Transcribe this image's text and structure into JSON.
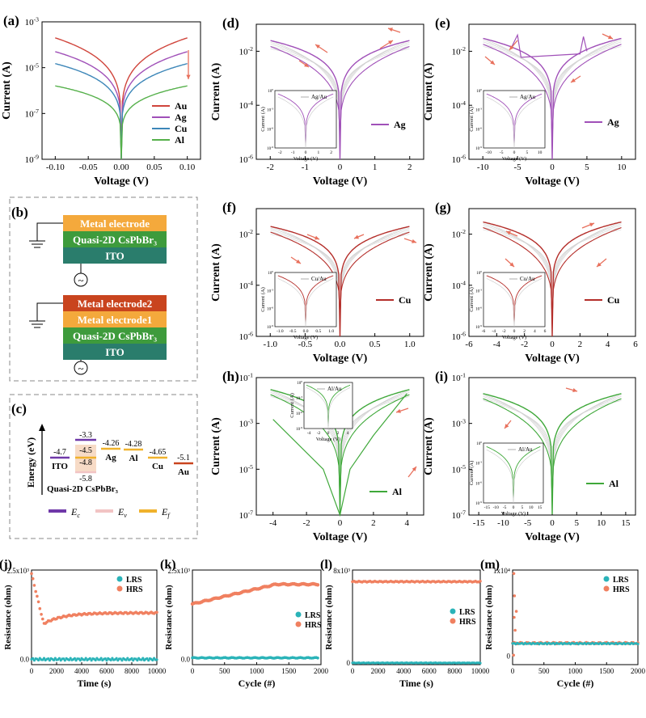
{
  "colors": {
    "au": "#d0453c",
    "ag": "#a050b8",
    "cu": "#3c86b8",
    "al": "#55b04a",
    "cu_dark": "#b42e2a",
    "al_green": "#3fa83a",
    "lrs": "#2ab3b8",
    "hrs": "#f08060",
    "arrow": "#e8705c",
    "ec": "#6f38a8",
    "ev": "#f2c4c4",
    "ef": "#f0b22c",
    "metal": "#f4a93c",
    "metal2": "#c9441e",
    "perov": "#3e9b3c",
    "ito": "#2a7d6c"
  },
  "chart_data": [
    {
      "id": "a",
      "panel_label": "(a)",
      "type": "line",
      "scale": "log",
      "xlabel": "Voltage (V)",
      "ylabel": "Current (A)",
      "xlim": [
        -0.12,
        0.12
      ],
      "ylim": [
        1e-09,
        0.001
      ],
      "xticks": [
        "-0.10",
        "-0.05",
        "0.00",
        "0.05",
        "0.10"
      ],
      "yticks": [
        "10^-9",
        "10^-7",
        "10^-5",
        "10^-3"
      ],
      "series": [
        {
          "name": "Au",
          "peak": 0.0002
        },
        {
          "name": "Ag",
          "peak": 5e-05
        },
        {
          "name": "Cu",
          "peak": 1.5e-05
        },
        {
          "name": "Al",
          "peak": 1.6e-06
        }
      ]
    },
    {
      "id": "d",
      "panel_label": "(d)",
      "type": "line",
      "scale": "log",
      "xlabel": "Voltage (V)",
      "ylabel": "Current (A)",
      "xlim": [
        -2.4,
        2.4
      ],
      "ylim": [
        1e-06,
        0.1
      ],
      "xticks": [
        "-2",
        "-1",
        "0",
        "1",
        "2"
      ],
      "yticks": [
        "10^-6",
        "10^-4",
        "10^-2"
      ],
      "series": [
        {
          "name": "Ag",
          "peak": 0.025
        }
      ],
      "inset": {
        "label": "Ag/Au",
        "ylabel": "Current (A)",
        "xlabel": "Voltage (V)",
        "xticks": [
          "-2",
          "-1",
          "0",
          "1",
          "2"
        ]
      }
    },
    {
      "id": "e",
      "panel_label": "(e)",
      "type": "line",
      "scale": "log",
      "xlabel": "Voltage (V)",
      "ylabel": "Current (A)",
      "xlim": [
        -12,
        12
      ],
      "ylim": [
        1e-06,
        0.1
      ],
      "xticks": [
        "-10",
        "-5",
        "0",
        "5",
        "10"
      ],
      "yticks": [
        "10^-6",
        "10^-4",
        "10^-2"
      ],
      "series": [
        {
          "name": "Ag",
          "peak": 0.03
        }
      ],
      "inset": {
        "label": "Ag/Au",
        "ylabel": "Current (A)",
        "xlabel": "Voltage (V)",
        "xticks": [
          "-10",
          "-5",
          "0",
          "5",
          "10"
        ]
      }
    },
    {
      "id": "f",
      "panel_label": "(f)",
      "type": "line",
      "scale": "log",
      "xlabel": "Voltage (V)",
      "ylabel": "Current (A)",
      "xlim": [
        -1.2,
        1.2
      ],
      "ylim": [
        1e-06,
        0.1
      ],
      "xticks": [
        "-1.0",
        "-0.5",
        "0.0",
        "0.5",
        "1.0"
      ],
      "yticks": [
        "10^-6",
        "10^-4",
        "10^-2"
      ],
      "series": [
        {
          "name": "Cu",
          "peak": 0.02
        }
      ],
      "inset": {
        "label": "Cu/Au",
        "ylabel": "Current (A)",
        "xlabel": "Voltage (V)",
        "xticks": [
          "-1.0",
          "-0.5",
          "0.0",
          "0.5",
          "1.0"
        ]
      }
    },
    {
      "id": "g",
      "panel_label": "(g)",
      "type": "line",
      "scale": "log",
      "xlabel": "Voltage (V)",
      "ylabel": "Current (A)",
      "xlim": [
        -6,
        6
      ],
      "ylim": [
        1e-06,
        0.1
      ],
      "xticks": [
        "-6",
        "-4",
        "-2",
        "0",
        "2",
        "4",
        "6"
      ],
      "yticks": [
        "10^-6",
        "10^-4",
        "10^-2"
      ],
      "series": [
        {
          "name": "Cu",
          "peak": 0.03
        }
      ],
      "inset": {
        "label": "Cu/Au",
        "ylabel": "Current (A)",
        "xlabel": "Voltage (V)",
        "xticks": [
          "-6",
          "-4",
          "-2",
          "0",
          "2",
          "4",
          "6"
        ]
      }
    },
    {
      "id": "h",
      "panel_label": "(h)",
      "type": "line",
      "scale": "log",
      "xlabel": "Voltage (V)",
      "ylabel": "Current (A)",
      "xlim": [
        -5,
        5
      ],
      "ylim": [
        1e-07,
        0.1
      ],
      "xticks": [
        "-4",
        "-2",
        "0",
        "2",
        "4"
      ],
      "yticks": [
        "10^-7",
        "10^-5",
        "10^-3",
        "10^-1"
      ],
      "series": [
        {
          "name": "Al",
          "peak": 0.03
        }
      ],
      "inset": {
        "label": "Al/Au",
        "ylabel": "Current (A)",
        "xlabel": "Voltage (V)",
        "xticks": [
          "-4",
          "-2",
          "0",
          "2",
          "4"
        ]
      }
    },
    {
      "id": "i",
      "panel_label": "(i)",
      "type": "line",
      "scale": "log",
      "xlabel": "Voltage (V)",
      "ylabel": "Current (A)",
      "xlim": [
        -17,
        17
      ],
      "ylim": [
        1e-07,
        0.1
      ],
      "xticks": [
        "-15",
        "-10",
        "-5",
        "0",
        "5",
        "10",
        "15"
      ],
      "yticks": [
        "10^-7",
        "10^-5",
        "10^-3",
        "10^-1"
      ],
      "series": [
        {
          "name": "Al",
          "peak": 0.02
        }
      ],
      "inset": {
        "label": "Al/Au",
        "ylabel": "Current (A)",
        "xlabel": "Voltage (V)",
        "xticks": [
          "-15",
          "-10",
          "-5",
          "0",
          "5",
          "10",
          "15"
        ]
      }
    },
    {
      "id": "j",
      "panel_label": "(j)",
      "type": "scatter",
      "xlabel": "Time (s)",
      "ylabel": "Resistance (ohm)",
      "xlim": [
        0,
        10000
      ],
      "ylim": [
        -150,
        2500
      ],
      "xticks": [
        "0",
        "2000",
        "4000",
        "6000",
        "8000",
        "10000"
      ],
      "ytick_top": "2.5x10³",
      "ytick_zero": "0.0",
      "series": [
        {
          "name": "LRS",
          "value": 0
        },
        {
          "name": "HRS",
          "value": 1300,
          "start": 2400,
          "dip": 1000
        }
      ]
    },
    {
      "id": "k",
      "panel_label": "(k)",
      "type": "scatter",
      "xlabel": "Cycle (#)",
      "ylabel": "Resistance (ohm)",
      "xlim": [
        0,
        2000
      ],
      "ylim": [
        -150,
        2500
      ],
      "xticks": [
        "0",
        "500",
        "1000",
        "1500",
        "2000"
      ],
      "ytick_top": "2.5x10³",
      "ytick_zero": "0.0",
      "series": [
        {
          "name": "LRS",
          "value": 40
        },
        {
          "name": "HRS",
          "start": 1550,
          "end": 2100
        }
      ]
    },
    {
      "id": "l",
      "panel_label": "(l)",
      "type": "scatter",
      "xlabel": "Time (s)",
      "ylabel": "Resistance (ohm)",
      "xlim": [
        0,
        10000
      ],
      "ylim": [
        -150,
        8000
      ],
      "xticks": [
        "0",
        "2000",
        "4000",
        "6000",
        "8000",
        "10000"
      ],
      "ytick_top": "8x10³",
      "ytick_zero": "0",
      "series": [
        {
          "name": "LRS",
          "value": 0
        },
        {
          "name": "HRS",
          "value": 7000
        }
      ]
    },
    {
      "id": "m",
      "panel_label": "(m)",
      "type": "scatter",
      "xlabel": "Cycle (#)",
      "ylabel": "Resistance (ohm)",
      "xlim": [
        0,
        2000
      ],
      "ylim": [
        -1000,
        10000
      ],
      "xticks": [
        "0",
        "500",
        "1000",
        "1500",
        "2000"
      ],
      "ytick_top": "1x10⁴",
      "ytick_zero": "0",
      "series": [
        {
          "name": "LRS",
          "value": 1500
        },
        {
          "name": "HRS",
          "value": 1500
        }
      ]
    }
  ],
  "schematic": {
    "panel_label": "(b)",
    "stack1": [
      "Metal electrode",
      "Quasi-2D CsPbBr₃",
      "ITO"
    ],
    "stack2": [
      "Metal electrode2",
      "Metal electrode1",
      "Quasi-2D CsPbBr₃",
      "ITO"
    ]
  },
  "energy": {
    "panel_label": "(c)",
    "ylabel": "Energy (eV)",
    "levels": [
      {
        "name": "ITO",
        "value": "-4.7"
      },
      {
        "name": "Quasi-2D CsPbBr₃",
        "ec": "-3.3",
        "ef1": "-4.5",
        "ef2": "-4.8",
        "ev": "-5.8"
      },
      {
        "name": "Ag",
        "value": "-4.26"
      },
      {
        "name": "Al",
        "value": "-4.28"
      },
      {
        "name": "Cu",
        "value": "-4.65"
      },
      {
        "name": "Au",
        "value": "-5.1"
      }
    ],
    "legend": [
      "E_c",
      "E_v",
      "E_f"
    ]
  }
}
